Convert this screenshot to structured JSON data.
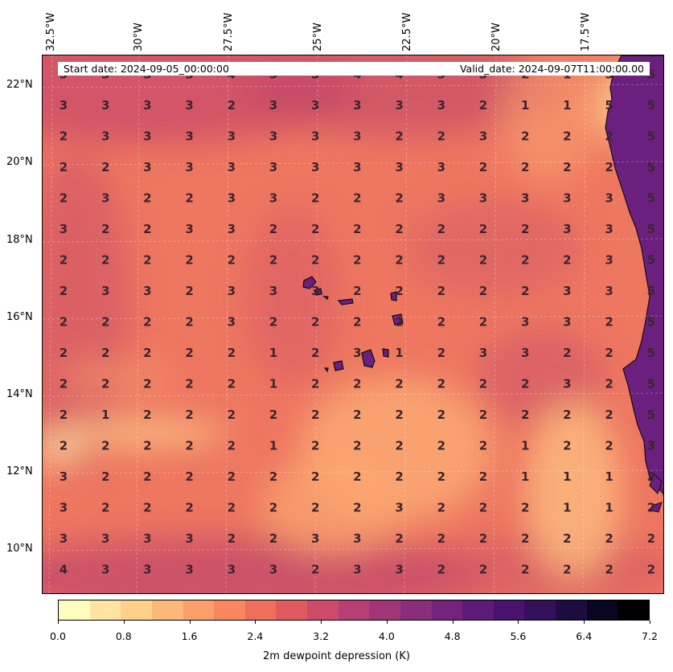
{
  "map": {
    "start_date": "Start date: 2024-09-05_00:00:00",
    "valid_date": "Valid_date: 2024-09-07T11:00:00.00",
    "lon_ticks": [
      "32.5°W",
      "30°W",
      "27.5°W",
      "25°W",
      "22.5°W",
      "20°W",
      "17.5°W"
    ],
    "lat_ticks": [
      "22°N",
      "20°N",
      "18°N",
      "16°N",
      "14°N",
      "12°N",
      "10°N"
    ],
    "colorbar": {
      "label": "2m dewpoint depression (K)",
      "ticks": [
        "0.0",
        "0.8",
        "1.6",
        "2.4",
        "3.2",
        "4.0",
        "4.8",
        "5.6",
        "6.4",
        "7.2"
      ],
      "colors": [
        "#fcfdbf",
        "#fee3a1",
        "#fed08b",
        "#feb77a",
        "#fc9f6c",
        "#f8875f",
        "#f06f5c",
        "#e25a60",
        "#cd4a6a",
        "#b73f73",
        "#a03677",
        "#8a2d7a",
        "#73237b",
        "#5e1a78",
        "#48136e",
        "#33105a",
        "#1e0b3f",
        "#0a0622",
        "#000004"
      ]
    },
    "colors": {
      "ocean_base": "#ee7760",
      "land": "#6b1f7e",
      "coast": "#111111"
    },
    "grid_values": [
      [
        "3",
        "3",
        "3",
        "3",
        "4",
        "3",
        "3",
        "4",
        "4",
        "3",
        "3",
        "2",
        "1",
        "5",
        "5"
      ],
      [
        "3",
        "3",
        "3",
        "3",
        "2",
        "3",
        "3",
        "3",
        "3",
        "3",
        "2",
        "1",
        "1",
        "5",
        "5"
      ],
      [
        "2",
        "3",
        "3",
        "3",
        "3",
        "3",
        "3",
        "3",
        "2",
        "2",
        "3",
        "2",
        "2",
        "2",
        "5"
      ],
      [
        "2",
        "2",
        "3",
        "3",
        "3",
        "3",
        "3",
        "3",
        "3",
        "3",
        "2",
        "2",
        "2",
        "2",
        "5"
      ],
      [
        "2",
        "3",
        "2",
        "2",
        "3",
        "3",
        "2",
        "2",
        "2",
        "3",
        "3",
        "3",
        "3",
        "3",
        "5"
      ],
      [
        "3",
        "2",
        "2",
        "3",
        "3",
        "2",
        "2",
        "2",
        "2",
        "2",
        "2",
        "2",
        "3",
        "3",
        "5"
      ],
      [
        "2",
        "2",
        "2",
        "2",
        "2",
        "2",
        "2",
        "2",
        "2",
        "2",
        "2",
        "2",
        "2",
        "3",
        "5"
      ],
      [
        "2",
        "3",
        "3",
        "2",
        "3",
        "3",
        "3",
        "2",
        "2",
        "2",
        "2",
        "2",
        "3",
        "3",
        "5"
      ],
      [
        "2",
        "2",
        "2",
        "2",
        "3",
        "2",
        "2",
        "2",
        "2",
        "2",
        "2",
        "3",
        "3",
        "2",
        "5"
      ],
      [
        "2",
        "2",
        "2",
        "2",
        "2",
        "1",
        "2",
        "3",
        "1",
        "2",
        "3",
        "3",
        "2",
        "2",
        "5"
      ],
      [
        "2",
        "2",
        "2",
        "2",
        "2",
        "1",
        "2",
        "2",
        "2",
        "2",
        "2",
        "2",
        "3",
        "2",
        "5"
      ],
      [
        "2",
        "1",
        "2",
        "2",
        "2",
        "2",
        "2",
        "2",
        "2",
        "2",
        "2",
        "2",
        "2",
        "2",
        "5"
      ],
      [
        "2",
        "2",
        "2",
        "2",
        "2",
        "1",
        "2",
        "2",
        "2",
        "2",
        "2",
        "1",
        "2",
        "2",
        "3"
      ],
      [
        "3",
        "2",
        "2",
        "2",
        "2",
        "2",
        "2",
        "2",
        "2",
        "2",
        "2",
        "1",
        "1",
        "1",
        "2"
      ],
      [
        "3",
        "2",
        "2",
        "2",
        "2",
        "2",
        "2",
        "2",
        "3",
        "2",
        "2",
        "2",
        "1",
        "1",
        "2"
      ],
      [
        "3",
        "3",
        "3",
        "3",
        "2",
        "2",
        "3",
        "3",
        "2",
        "2",
        "2",
        "2",
        "2",
        "2",
        "2"
      ],
      [
        "4",
        "3",
        "3",
        "3",
        "3",
        "3",
        "2",
        "3",
        "3",
        "2",
        "2",
        "2",
        "2",
        "2",
        "2"
      ]
    ]
  }
}
